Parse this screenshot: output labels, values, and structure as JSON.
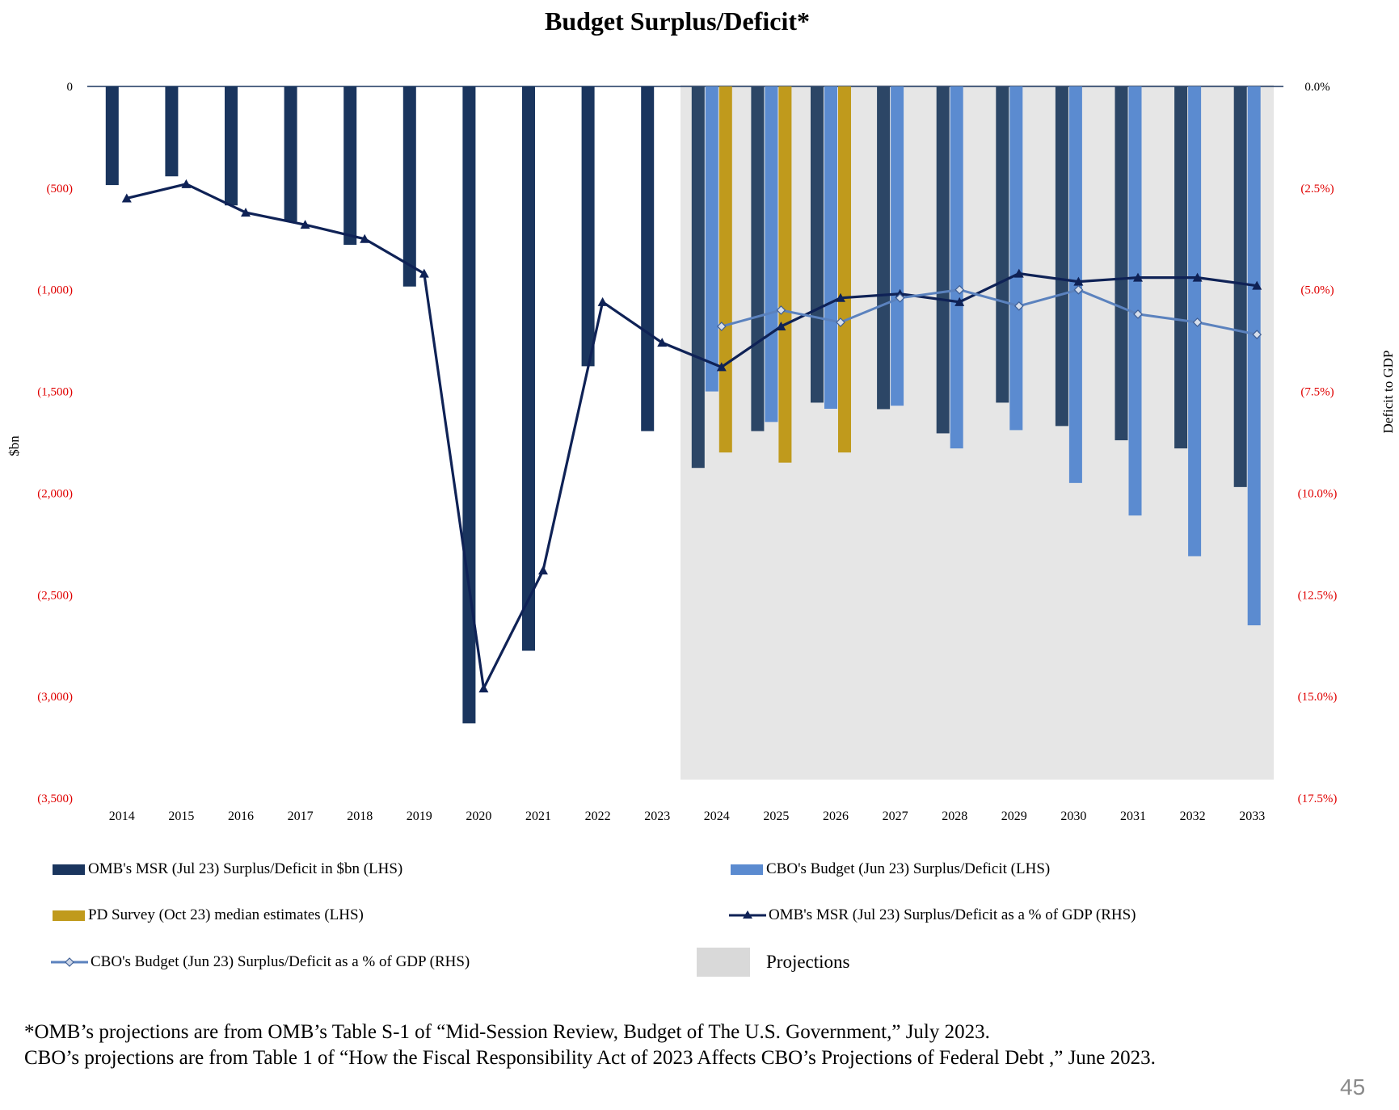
{
  "chart_data": {
    "type": "bar",
    "title": "Budget Surplus/Deficit*",
    "ylabel_left": "$bn",
    "ylabel_right": "Deficit to GDP",
    "ylim_left": [
      -3500,
      0
    ],
    "ylim_right": [
      -17.5,
      0
    ],
    "yticks_left": [
      "0",
      "(500)",
      "(1,000)",
      "(1,500)",
      "(2,000)",
      "(2,500)",
      "(3,000)",
      "(3,500)"
    ],
    "yticks_right": [
      "0.0%",
      "(2.5%)",
      "(5.0%)",
      "(7.5%)",
      "(10.0%)",
      "(12.5%)",
      "(15.0%)",
      "(17.5%)"
    ],
    "categories": [
      "2014",
      "2015",
      "2016",
      "2017",
      "2018",
      "2019",
      "2020",
      "2021",
      "2022",
      "2023",
      "2024",
      "2025",
      "2026",
      "2027",
      "2028",
      "2029",
      "2030",
      "2031",
      "2032",
      "2033"
    ],
    "projection_start": "2024",
    "projection_label": "Projections",
    "series": [
      {
        "name": "OMB's MSR (Jul 23) Surplus/Deficit in $bn (LHS)",
        "kind": "bar",
        "axis": "left",
        "color": "#1a355e",
        "values": [
          -485,
          -442,
          -585,
          -665,
          -779,
          -984,
          -3132,
          -2775,
          -1376,
          -1695,
          -1876,
          -1695,
          -1555,
          -1587,
          -1706,
          -1555,
          -1670,
          -1740,
          -1780,
          -1970
        ]
      },
      {
        "name": "CBO's Budget (Jun 23) Surplus/Deficit (LHS)",
        "kind": "bar",
        "axis": "left",
        "color": "#5b8bd0",
        "values": [
          null,
          null,
          null,
          null,
          null,
          null,
          null,
          null,
          null,
          null,
          -1500,
          -1650,
          -1585,
          -1570,
          -1780,
          -1690,
          -1950,
          -2110,
          -2310,
          -2650
        ]
      },
      {
        "name": "PD Survey (Oct 23) median estimates (LHS)",
        "kind": "bar",
        "axis": "left",
        "color": "#c09a1c",
        "values": [
          null,
          null,
          null,
          null,
          null,
          null,
          null,
          null,
          null,
          null,
          -1800,
          -1850,
          -1800,
          null,
          null,
          null,
          null,
          null,
          null,
          null
        ]
      },
      {
        "name": "OMB's MSR (Jul 23) Surplus/Deficit as a % of GDP (RHS)",
        "kind": "line",
        "axis": "right",
        "color": "#0f2256",
        "marker": "triangle",
        "values": [
          -2.75,
          -2.4,
          -3.1,
          -3.4,
          -3.75,
          -4.6,
          -14.8,
          -11.9,
          -5.3,
          -6.3,
          -6.9,
          -5.9,
          -5.2,
          -5.1,
          -5.3,
          -4.6,
          -4.8,
          -4.7,
          -4.7,
          -4.9
        ]
      },
      {
        "name": "CBO's Budget (Jun 23) Surplus/Deficit as a % of GDP (RHS)",
        "kind": "line",
        "axis": "right",
        "color": "#5b82be",
        "marker": "diamond",
        "values": [
          null,
          null,
          null,
          null,
          null,
          null,
          null,
          null,
          null,
          null,
          -5.9,
          -5.5,
          -5.8,
          -5.2,
          -5.0,
          -5.4,
          -5.0,
          -5.6,
          -5.8,
          -6.1
        ]
      }
    ]
  },
  "legend": {
    "omb_bar": "OMB's MSR (Jul 23) Surplus/Deficit in $bn (LHS)",
    "cbo_bar": "CBO's Budget (Jun 23) Surplus/Deficit (LHS)",
    "pd_bar": "PD Survey (Oct 23) median estimates (LHS)",
    "omb_line": "OMB's MSR (Jul 23) Surplus/Deficit as a % of GDP (RHS)",
    "cbo_line": "CBO's Budget (Jun 23) Surplus/Deficit as a % of GDP (RHS)",
    "projections": "Projections"
  },
  "footnote": {
    "line1": "*OMB’s projections are from OMB’s Table S-1 of “Mid-Session Review, Budget of The U.S. Government,” July 2023.",
    "line2": "CBO’s projections are from Table 1 of “How the Fiscal Responsibility Act of 2023 Affects CBO’s Projections of Federal Debt ,” June 2023."
  },
  "page_number": "45",
  "colors": {
    "omb_bar": "#1a355e",
    "cbo_bar": "#5b8bd0",
    "pd_bar": "#c09a1c",
    "omb_line": "#0f2256",
    "cbo_line": "#5b82be",
    "projection_bg": "#e6e6e6",
    "negative_tick": "#e00000"
  }
}
